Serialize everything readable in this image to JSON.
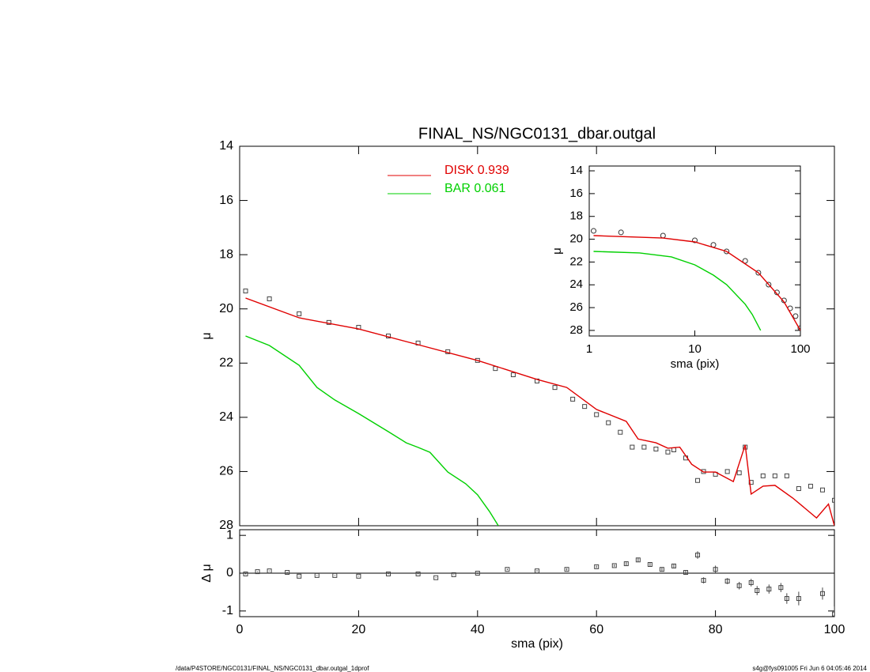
{
  "chart_data": [
    {
      "type": "line",
      "title": "FINAL_NS/NGC0131_dbar.outgal",
      "ylabel": "μ",
      "xlim": [
        0,
        100
      ],
      "xticks": [
        0,
        20,
        40,
        60,
        80,
        100
      ],
      "ylim": [
        14,
        28
      ],
      "yticks": [
        14,
        16,
        18,
        20,
        22,
        24,
        26,
        28
      ],
      "y_inverted": true,
      "series": [
        {
          "style": "points",
          "marker": "square",
          "color": "#444444",
          "x": [
            1,
            5,
            10,
            15,
            20,
            25,
            30,
            35,
            40,
            43,
            46,
            50,
            53,
            56,
            58,
            60,
            62,
            64,
            66,
            68,
            70,
            72,
            73,
            75,
            77,
            78,
            80,
            82,
            84,
            85,
            86,
            88,
            90,
            92,
            94,
            96,
            98,
            100
          ],
          "values": [
            19.34,
            19.63,
            20.18,
            20.5,
            20.68,
            21.0,
            21.26,
            21.58,
            21.9,
            22.2,
            22.43,
            22.66,
            22.9,
            23.33,
            23.6,
            23.9,
            24.2,
            24.55,
            25.1,
            25.1,
            25.17,
            25.28,
            25.2,
            25.5,
            26.33,
            26.0,
            26.1,
            26.0,
            26.05,
            25.1,
            26.4,
            26.16,
            26.16,
            26.16,
            26.63,
            26.54,
            26.68,
            27.06
          ]
        },
        {
          "style": "line",
          "name": "DISK  0.939",
          "color": "#e00000",
          "x": [
            1,
            10,
            20,
            30,
            40,
            50,
            55,
            60,
            65,
            67,
            70,
            72,
            74,
            76,
            78,
            80,
            83,
            85,
            86,
            88,
            90,
            93,
            97,
            99,
            100
          ],
          "values": [
            19.6,
            20.33,
            20.74,
            21.32,
            21.9,
            22.6,
            22.9,
            23.71,
            24.15,
            24.8,
            24.94,
            25.14,
            25.1,
            25.73,
            26.02,
            26.02,
            26.37,
            25.02,
            26.83,
            26.54,
            26.51,
            26.98,
            27.71,
            27.2,
            28
          ]
        },
        {
          "style": "line",
          "name": "BAR  0.061",
          "color": "#00d000",
          "x": [
            1,
            5,
            10,
            13,
            16,
            20,
            25,
            28,
            30,
            32,
            35,
            38,
            40,
            42,
            43.5
          ],
          "values": [
            21.0,
            21.35,
            22.08,
            22.9,
            23.36,
            23.86,
            24.53,
            24.94,
            25.11,
            25.29,
            26.02,
            26.45,
            26.86,
            27.47,
            28
          ]
        }
      ]
    },
    {
      "type": "scatter",
      "xlabel": "sma (pix)",
      "ylabel": "Δ μ",
      "xlim": [
        0,
        100
      ],
      "xticks": [
        0,
        20,
        40,
        60,
        80,
        100
      ],
      "ylim": [
        -1.15,
        1.15
      ],
      "yticks": [
        -1,
        0,
        1
      ],
      "series": [
        {
          "style": "points",
          "marker": "square",
          "color": "#444444",
          "x": [
            1,
            3,
            5,
            8,
            10,
            13,
            16,
            20,
            25,
            30,
            33,
            36,
            40,
            45,
            50,
            55,
            60,
            63,
            65,
            67,
            69,
            71,
            73,
            75,
            77,
            78,
            80,
            82,
            84,
            86,
            87,
            89,
            91,
            92,
            94,
            98,
            100
          ],
          "values": [
            -0.02,
            0.04,
            0.06,
            0.02,
            -0.08,
            -0.06,
            -0.06,
            -0.08,
            -0.02,
            -0.02,
            -0.12,
            -0.04,
            0,
            0.1,
            0.06,
            0.1,
            0.17,
            0.2,
            0.25,
            0.35,
            0.23,
            0.1,
            0.19,
            0.02,
            0.48,
            -0.19,
            0.1,
            -0.21,
            -0.33,
            -0.25,
            -0.46,
            -0.42,
            -0.38,
            -0.67,
            -0.67,
            -0.54,
            -1.08
          ],
          "errors": [
            0.01,
            0.01,
            0.01,
            0.01,
            0.01,
            0.01,
            0.01,
            0.01,
            0.01,
            0.01,
            0.01,
            0.01,
            0.02,
            0.02,
            0.02,
            0.03,
            0.03,
            0.03,
            0.04,
            0.05,
            0.05,
            0.05,
            0.06,
            0.06,
            0.1,
            0.08,
            0.1,
            0.08,
            0.1,
            0.1,
            0.12,
            0.12,
            0.12,
            0.14,
            0.18,
            0.16,
            0.2
          ]
        }
      ]
    },
    {
      "type": "line",
      "xlabel": "sma (pix)",
      "ylabel": "μ",
      "xscale": "log",
      "xlim": [
        1,
        100
      ],
      "xticks": [
        1,
        10,
        100
      ],
      "ylim": [
        13.58,
        28.49
      ],
      "yticks": [
        14,
        16,
        18,
        20,
        22,
        24,
        26,
        28
      ],
      "y_inverted": true,
      "series": [
        {
          "style": "points",
          "marker": "circle",
          "color": "#333333",
          "x": [
            1.1,
            2,
            5,
            10,
            15,
            20,
            30,
            40,
            50,
            60,
            70,
            80,
            90,
            100
          ],
          "values": [
            19.27,
            19.4,
            19.68,
            20.1,
            20.5,
            21.07,
            21.9,
            22.94,
            23.98,
            24.67,
            25.37,
            26.06,
            26.75,
            27.8
          ]
        },
        {
          "style": "line",
          "color": "#e00000",
          "x": [
            1.1,
            5,
            10,
            20,
            40,
            70,
            100
          ],
          "values": [
            19.68,
            19.9,
            20.24,
            21.07,
            22.94,
            25.5,
            28
          ]
        },
        {
          "style": "line",
          "color": "#00d000",
          "x": [
            1.1,
            3,
            6,
            10,
            15,
            20,
            30,
            35,
            42
          ],
          "values": [
            21.07,
            21.2,
            21.55,
            22.25,
            23.15,
            23.98,
            25.7,
            26.6,
            28
          ]
        }
      ]
    }
  ],
  "footer": {
    "left": "/data/P4STORE/NGC0131/FINAL_NS/NGC0131_dbar.outgal_1dprof",
    "right": "s4g@fys091005  Fri Jun  6 04:05:46 2014"
  }
}
